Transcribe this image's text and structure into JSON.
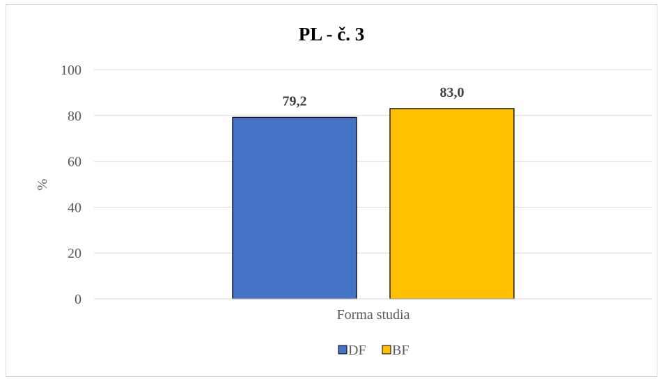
{
  "chart_data": {
    "type": "bar",
    "title": "PL - č. 3",
    "ylabel": "%",
    "categories": [
      "Forma studia"
    ],
    "series": [
      {
        "name": "DF",
        "values": [
          79.2
        ],
        "label": "79,2",
        "color": "#4472C4"
      },
      {
        "name": "BF",
        "values": [
          83.0
        ],
        "label": "83,0",
        "color": "#FFC000"
      }
    ],
    "ylim": [
      0,
      100
    ],
    "yticks": [
      0,
      20,
      40,
      60,
      80,
      100
    ],
    "grid": true,
    "legend": "bottom"
  }
}
